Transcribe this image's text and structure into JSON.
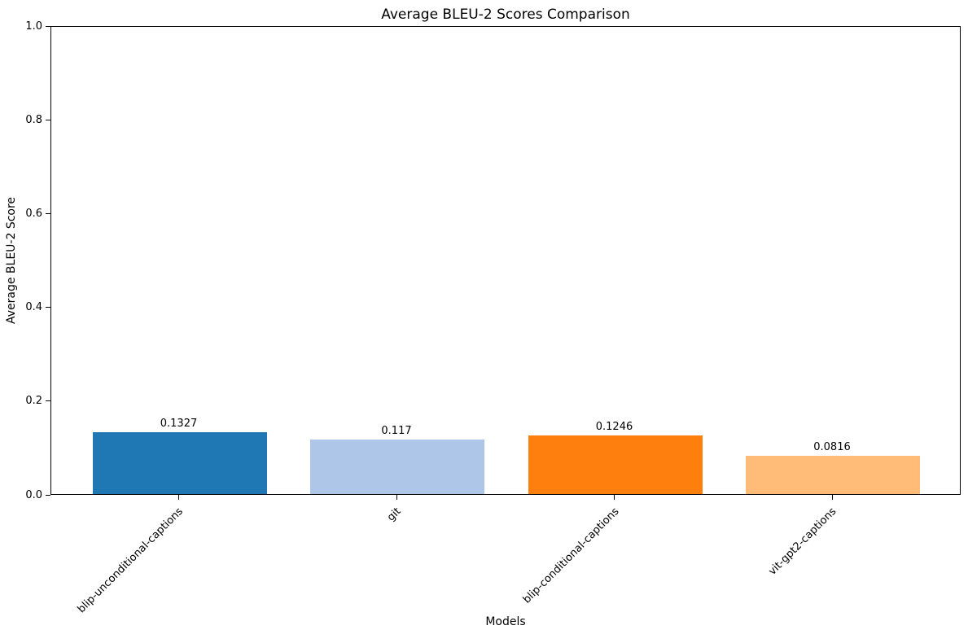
{
  "chart_data": {
    "type": "bar",
    "title": "Average BLEU-2 Scores Comparison",
    "xlabel": "Models",
    "ylabel": "Average BLEU-2 Score",
    "categories": [
      "blip-unconditional-captions",
      "git",
      "blip-conditional-captions",
      "vit-gpt2-captions"
    ],
    "values": [
      0.1327,
      0.117,
      0.1246,
      0.0816
    ],
    "value_labels": [
      "0.1327",
      "0.117",
      "0.1246",
      "0.0816"
    ],
    "bar_colors": [
      "#1f77b4",
      "#aec7e8",
      "#ff7f0e",
      "#ffbb78"
    ],
    "ylim": [
      0.0,
      1.0
    ],
    "yticks": [
      "0.0",
      "0.2",
      "0.4",
      "0.6",
      "0.8",
      "1.0"
    ],
    "xtick_rotation": 45,
    "grid": false,
    "legend_position": "none",
    "frame_color": "#000000",
    "background_color": "#ffffff"
  }
}
